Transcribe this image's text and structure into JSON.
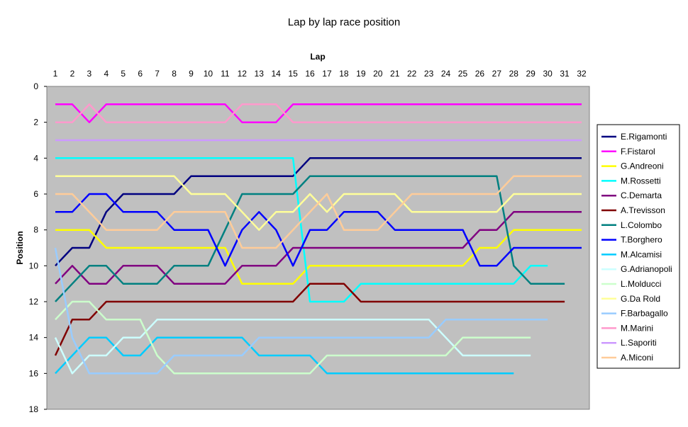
{
  "chart_data": {
    "type": "line",
    "title": "Lap by lap race position",
    "xlabel": "Lap",
    "ylabel": "Position",
    "x": [
      1,
      2,
      3,
      4,
      5,
      6,
      7,
      8,
      9,
      10,
      11,
      12,
      13,
      14,
      15,
      16,
      17,
      18,
      19,
      20,
      21,
      22,
      23,
      24,
      25,
      26,
      27,
      28,
      29,
      30,
      31,
      32
    ],
    "xlim": [
      1,
      32
    ],
    "ylim": [
      0,
      18
    ],
    "y_ticks": [
      0,
      2,
      4,
      6,
      8,
      10,
      12,
      14,
      16,
      18
    ],
    "y_inverted": true,
    "x_axis_position": "top",
    "grid": false,
    "background": "#c0c0c0",
    "legend_position": "right",
    "series": [
      {
        "name": "E.Rigamonti",
        "color": "#000080",
        "values": [
          10,
          9,
          9,
          7,
          6,
          6,
          6,
          6,
          5,
          5,
          5,
          5,
          5,
          5,
          5,
          4,
          4,
          4,
          4,
          4,
          4,
          4,
          4,
          4,
          4,
          4,
          4,
          4,
          4,
          4,
          4,
          4
        ]
      },
      {
        "name": "F.Fistarol",
        "color": "#ff00ff",
        "values": [
          1,
          1,
          2,
          1,
          1,
          1,
          1,
          1,
          1,
          1,
          1,
          2,
          2,
          2,
          1,
          1,
          1,
          1,
          1,
          1,
          1,
          1,
          1,
          1,
          1,
          1,
          1,
          1,
          1,
          1,
          1,
          1
        ]
      },
      {
        "name": "G.Andreoni",
        "color": "#ffff00",
        "values": [
          8,
          8,
          8,
          9,
          9,
          9,
          9,
          9,
          9,
          9,
          9,
          11,
          11,
          11,
          11,
          10,
          10,
          10,
          10,
          10,
          10,
          10,
          10,
          10,
          10,
          9,
          9,
          8,
          8,
          8,
          8,
          8
        ]
      },
      {
        "name": "M.Rossetti",
        "color": "#00ffff",
        "values": [
          4,
          4,
          4,
          4,
          4,
          4,
          4,
          4,
          4,
          4,
          4,
          4,
          4,
          4,
          4,
          12,
          12,
          12,
          11,
          11,
          11,
          11,
          11,
          11,
          11,
          11,
          11,
          11,
          10,
          10,
          null,
          null
        ]
      },
      {
        "name": "C.Demarta",
        "color": "#800080",
        "values": [
          11,
          10,
          11,
          11,
          10,
          10,
          10,
          11,
          11,
          11,
          11,
          10,
          10,
          10,
          9,
          9,
          9,
          9,
          9,
          9,
          9,
          9,
          9,
          9,
          9,
          8,
          8,
          7,
          7,
          7,
          7,
          7
        ]
      },
      {
        "name": "A.Trevisson",
        "color": "#800000",
        "values": [
          15,
          13,
          13,
          12,
          12,
          12,
          12,
          12,
          12,
          12,
          12,
          12,
          12,
          12,
          12,
          11,
          11,
          11,
          12,
          12,
          12,
          12,
          12,
          12,
          12,
          12,
          12,
          12,
          12,
          12,
          12,
          null
        ]
      },
      {
        "name": "L.Colombo",
        "color": "#008080",
        "values": [
          12,
          11,
          10,
          10,
          11,
          11,
          11,
          10,
          10,
          10,
          8,
          6,
          6,
          6,
          6,
          5,
          5,
          5,
          5,
          5,
          5,
          5,
          5,
          5,
          5,
          5,
          5,
          10,
          11,
          11,
          11,
          null
        ]
      },
      {
        "name": "T.Borghero",
        "color": "#0000ff",
        "values": [
          7,
          7,
          6,
          6,
          7,
          7,
          7,
          8,
          8,
          8,
          10,
          8,
          7,
          8,
          10,
          8,
          8,
          7,
          7,
          7,
          8,
          8,
          8,
          8,
          8,
          10,
          10,
          9,
          9,
          9,
          9,
          9
        ]
      },
      {
        "name": "M.Alcamisi",
        "color": "#00ccff",
        "values": [
          16,
          15,
          14,
          14,
          15,
          15,
          14,
          14,
          14,
          14,
          14,
          14,
          15,
          15,
          15,
          15,
          16,
          16,
          16,
          16,
          16,
          16,
          16,
          16,
          16,
          16,
          16,
          16,
          null,
          null,
          null,
          null
        ]
      },
      {
        "name": "G.Adrianopoli",
        "color": "#ccffff",
        "values": [
          14,
          16,
          15,
          15,
          14,
          14,
          13,
          13,
          13,
          13,
          13,
          13,
          13,
          13,
          13,
          13,
          13,
          13,
          13,
          13,
          13,
          13,
          13,
          14,
          15,
          15,
          15,
          15,
          15,
          null,
          null,
          null
        ]
      },
      {
        "name": "L.Molducci",
        "color": "#ccffcc",
        "values": [
          13,
          12,
          12,
          13,
          13,
          13,
          15,
          16,
          16,
          16,
          16,
          16,
          16,
          16,
          16,
          16,
          15,
          15,
          15,
          15,
          15,
          15,
          15,
          15,
          14,
          14,
          14,
          14,
          14,
          null,
          null,
          null
        ]
      },
      {
        "name": "G.Da Rold",
        "color": "#ffff99",
        "values": [
          5,
          5,
          5,
          5,
          5,
          5,
          5,
          5,
          6,
          6,
          6,
          7,
          8,
          7,
          7,
          6,
          7,
          6,
          6,
          6,
          6,
          7,
          7,
          7,
          7,
          7,
          7,
          6,
          6,
          6,
          6,
          6
        ]
      },
      {
        "name": "F.Barbagallo",
        "color": "#99ccff",
        "values": [
          9,
          14,
          16,
          16,
          16,
          16,
          16,
          15,
          15,
          15,
          15,
          15,
          14,
          14,
          14,
          14,
          14,
          14,
          14,
          14,
          14,
          14,
          14,
          13,
          13,
          13,
          13,
          13,
          13,
          13,
          null,
          null
        ]
      },
      {
        "name": "M.Marini",
        "color": "#ff99cc",
        "values": [
          2,
          2,
          1,
          2,
          2,
          2,
          2,
          2,
          2,
          2,
          2,
          1,
          1,
          1,
          2,
          2,
          2,
          2,
          2,
          2,
          2,
          2,
          2,
          2,
          2,
          2,
          2,
          2,
          2,
          2,
          2,
          2
        ]
      },
      {
        "name": "L.Saporiti",
        "color": "#cc99ff",
        "values": [
          3,
          3,
          3,
          3,
          3,
          3,
          3,
          3,
          3,
          3,
          3,
          3,
          3,
          3,
          3,
          3,
          3,
          3,
          3,
          3,
          3,
          3,
          3,
          3,
          3,
          3,
          3,
          3,
          3,
          3,
          3,
          3
        ]
      },
      {
        "name": "A.Miconi",
        "color": "#ffcc99",
        "values": [
          6,
          6,
          7,
          8,
          8,
          8,
          8,
          7,
          7,
          7,
          7,
          9,
          9,
          9,
          8,
          7,
          6,
          8,
          8,
          8,
          7,
          6,
          6,
          6,
          6,
          6,
          6,
          5,
          5,
          5,
          5,
          5
        ]
      }
    ]
  }
}
